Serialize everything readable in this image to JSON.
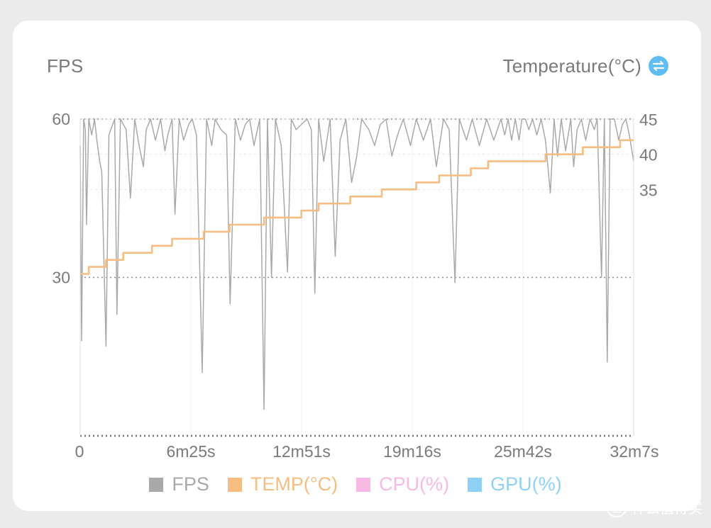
{
  "header": {
    "left_axis_title": "FPS",
    "right_axis_title": "Temperature(°C)",
    "swap_icon": "swap-arrows-icon"
  },
  "legend": [
    {
      "label": "FPS",
      "color": "#a9a9a9"
    },
    {
      "label": "TEMP(°C)",
      "color": "#f6bd82"
    },
    {
      "label": "CPU(%)",
      "color": "#f7b8e2"
    },
    {
      "label": "GPU(%)",
      "color": "#8fd1f6"
    }
  ],
  "watermark": {
    "text": "什么值得买",
    "badge": "值"
  },
  "chart_data": {
    "type": "line",
    "x_tick_labels": [
      "0",
      "6m25s",
      "12m51s",
      "19m16s",
      "25m42s",
      "32m7s"
    ],
    "x_range_seconds": [
      0,
      1927
    ],
    "left_axis": {
      "name": "FPS",
      "ticks": [
        "60",
        "30"
      ],
      "range": [
        0,
        60
      ]
    },
    "right_axis": {
      "name": "Temperature(°C)",
      "ticks": [
        "45",
        "40",
        "35"
      ],
      "range": [
        0,
        45
      ]
    },
    "grid": true,
    "legend_position": "bottom-center",
    "colors": {
      "fps": "#a9a9a9",
      "temp": "#f6bd82"
    },
    "series": [
      {
        "name": "TEMP(°C)",
        "axis": "right",
        "step": true,
        "points": [
          [
            0,
            23
          ],
          [
            30,
            24
          ],
          [
            90,
            25
          ],
          [
            150,
            26
          ],
          [
            250,
            27
          ],
          [
            320,
            28
          ],
          [
            430,
            29
          ],
          [
            520,
            30
          ],
          [
            640,
            31
          ],
          [
            770,
            32
          ],
          [
            830,
            33
          ],
          [
            940,
            34
          ],
          [
            1050,
            35
          ],
          [
            1170,
            36
          ],
          [
            1250,
            37
          ],
          [
            1360,
            38
          ],
          [
            1420,
            39
          ],
          [
            1620,
            40
          ],
          [
            1750,
            41
          ],
          [
            1880,
            42
          ],
          [
            1927,
            42
          ]
        ]
      },
      {
        "name": "FPS",
        "axis": "left",
        "points": [
          [
            0,
            55
          ],
          [
            5,
            18
          ],
          [
            12,
            60
          ],
          [
            18,
            58
          ],
          [
            22,
            40
          ],
          [
            30,
            60
          ],
          [
            40,
            57
          ],
          [
            50,
            60
          ],
          [
            58,
            56
          ],
          [
            68,
            52
          ],
          [
            75,
            50
          ],
          [
            90,
            17
          ],
          [
            100,
            57
          ],
          [
            120,
            60
          ],
          [
            128,
            23
          ],
          [
            140,
            60
          ],
          [
            150,
            59
          ],
          [
            160,
            58
          ],
          [
            175,
            45
          ],
          [
            190,
            60
          ],
          [
            205,
            55
          ],
          [
            220,
            51
          ],
          [
            230,
            58
          ],
          [
            245,
            60
          ],
          [
            262,
            56
          ],
          [
            280,
            60
          ],
          [
            295,
            54
          ],
          [
            305,
            57
          ],
          [
            320,
            60
          ],
          [
            330,
            42
          ],
          [
            345,
            60
          ],
          [
            360,
            56
          ],
          [
            378,
            59
          ],
          [
            390,
            60
          ],
          [
            405,
            57
          ],
          [
            425,
            12
          ],
          [
            440,
            60
          ],
          [
            458,
            55
          ],
          [
            470,
            60
          ],
          [
            490,
            58
          ],
          [
            510,
            57
          ],
          [
            522,
            25
          ],
          [
            540,
            60
          ],
          [
            558,
            56
          ],
          [
            575,
            59
          ],
          [
            590,
            60
          ],
          [
            605,
            55
          ],
          [
            625,
            60
          ],
          [
            640,
            5
          ],
          [
            652,
            60
          ],
          [
            666,
            30
          ],
          [
            680,
            60
          ],
          [
            700,
            55
          ],
          [
            722,
            31
          ],
          [
            735,
            60
          ],
          [
            752,
            58
          ],
          [
            770,
            59
          ],
          [
            790,
            60
          ],
          [
            805,
            58
          ],
          [
            817,
            27
          ],
          [
            830,
            60
          ],
          [
            848,
            52
          ],
          [
            870,
            60
          ],
          [
            888,
            34
          ],
          [
            905,
            56
          ],
          [
            925,
            60
          ],
          [
            945,
            48
          ],
          [
            963,
            53
          ],
          [
            980,
            60
          ],
          [
            1005,
            58
          ],
          [
            1025,
            55
          ],
          [
            1045,
            59
          ],
          [
            1065,
            60
          ],
          [
            1085,
            53
          ],
          [
            1105,
            57
          ],
          [
            1125,
            60
          ],
          [
            1150,
            55
          ],
          [
            1170,
            60
          ],
          [
            1195,
            56
          ],
          [
            1220,
            60
          ],
          [
            1240,
            51
          ],
          [
            1265,
            60
          ],
          [
            1285,
            58
          ],
          [
            1305,
            29
          ],
          [
            1320,
            60
          ],
          [
            1345,
            56
          ],
          [
            1365,
            60
          ],
          [
            1390,
            55
          ],
          [
            1415,
            60
          ],
          [
            1440,
            56
          ],
          [
            1465,
            60
          ],
          [
            1478,
            57
          ],
          [
            1490,
            60
          ],
          [
            1502,
            56
          ],
          [
            1515,
            60
          ],
          [
            1528,
            56
          ],
          [
            1538,
            60
          ],
          [
            1550,
            60
          ],
          [
            1562,
            58
          ],
          [
            1575,
            60
          ],
          [
            1590,
            57
          ],
          [
            1605,
            60
          ],
          [
            1620,
            56
          ],
          [
            1637,
            46
          ],
          [
            1650,
            60
          ],
          [
            1662,
            53
          ],
          [
            1675,
            60
          ],
          [
            1690,
            54
          ],
          [
            1708,
            60
          ],
          [
            1718,
            51
          ],
          [
            1730,
            58
          ],
          [
            1745,
            60
          ],
          [
            1760,
            56
          ],
          [
            1775,
            60
          ],
          [
            1790,
            58
          ],
          [
            1800,
            60
          ],
          [
            1815,
            30
          ],
          [
            1825,
            60
          ],
          [
            1835,
            14
          ],
          [
            1845,
            60
          ],
          [
            1860,
            60
          ],
          [
            1875,
            56
          ],
          [
            1888,
            59
          ],
          [
            1900,
            60
          ],
          [
            1912,
            57
          ],
          [
            1927,
            52
          ]
        ]
      }
    ]
  }
}
